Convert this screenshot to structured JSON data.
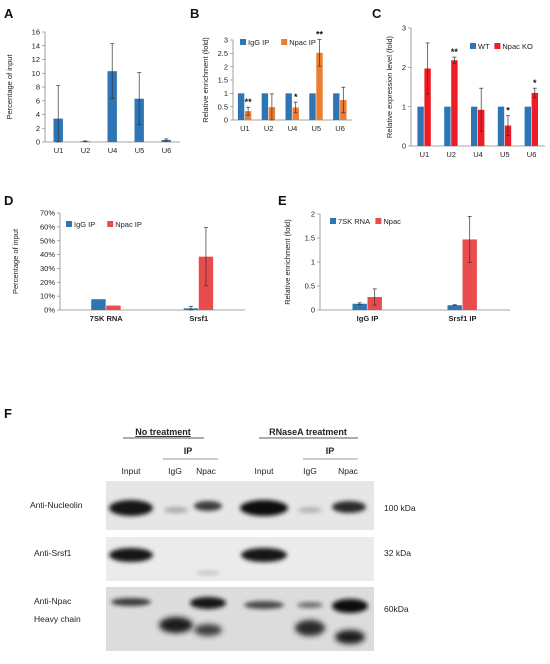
{
  "colors": {
    "blue": "#2e75b6",
    "orange": "#ed7d31",
    "red": "#e84c4c",
    "red_bright": "#ee1c25"
  },
  "chart_data": [
    {
      "panel": "A",
      "type": "bar",
      "ylabel": "Percentage of input",
      "categories": [
        "U1",
        "U2",
        "U4",
        "U5",
        "U6"
      ],
      "series": [
        {
          "values": [
            3.4,
            0.1,
            10.3,
            6.3,
            0.3
          ],
          "errors": [
            4.8,
            0.05,
            4.0,
            3.8,
            0.15
          ]
        }
      ],
      "ylim": [
        0,
        16
      ],
      "yticks": [
        0,
        2,
        4,
        6,
        8,
        10,
        12,
        14,
        16
      ]
    },
    {
      "panel": "B",
      "type": "bar",
      "ylabel": "Relative enrichment (fold)",
      "categories": [
        "U1",
        "U2",
        "U4",
        "U5",
        "U6"
      ],
      "series": [
        {
          "name": "IgG IP",
          "values": [
            1,
            1,
            1,
            1,
            1
          ],
          "errors": [
            0,
            0,
            0,
            0,
            0
          ]
        },
        {
          "name": "Npac IP",
          "values": [
            0.33,
            0.48,
            0.47,
            2.52,
            0.75
          ],
          "errors": [
            0.15,
            0.5,
            0.2,
            0.5,
            0.48
          ]
        }
      ],
      "significance": [
        "**",
        "",
        "*",
        "**",
        ""
      ],
      "ylim": [
        0,
        3
      ],
      "yticks": [
        0,
        0.5,
        1,
        1.5,
        2,
        2.5,
        3
      ]
    },
    {
      "panel": "C",
      "type": "bar",
      "ylabel": "Relative expression level (fold)",
      "categories": [
        "U1",
        "U2",
        "U4",
        "U5",
        "U6"
      ],
      "series": [
        {
          "name": "WT",
          "values": [
            1,
            1,
            1,
            1,
            1
          ],
          "errors": [
            0,
            0,
            0,
            0,
            0
          ]
        },
        {
          "name": "Npac KO",
          "values": [
            1.97,
            2.18,
            0.92,
            0.52,
            1.35
          ],
          "errors": [
            0.65,
            0.08,
            0.55,
            0.25,
            0.12
          ]
        }
      ],
      "significance": [
        "",
        "**",
        "",
        "*",
        "*"
      ],
      "ylim": [
        0,
        3
      ],
      "yticks": [
        0,
        1,
        2,
        3
      ]
    },
    {
      "panel": "D",
      "type": "bar",
      "ylabel": "Percentage of input",
      "categories": [
        "7SK RNA",
        "Srsf1"
      ],
      "series": [
        {
          "name": "IgG IP",
          "values": [
            7.8,
            1.2
          ],
          "errors": [
            0,
            1.5
          ]
        },
        {
          "name": "Npac IP",
          "values": [
            3.2,
            38.5
          ],
          "errors": [
            0,
            21
          ]
        }
      ],
      "ylim": [
        0,
        70
      ],
      "yticks": [
        "0%",
        "10%",
        "20%",
        "30%",
        "40%",
        "50%",
        "60%",
        "70%"
      ]
    },
    {
      "panel": "E",
      "type": "bar",
      "ylabel": "Relative enrichment (fold)",
      "categories": [
        "IgG IP",
        "Srsf1 IP"
      ],
      "series": [
        {
          "name": "7SK RNA",
          "values": [
            0.13,
            0.1
          ],
          "errors": [
            0.02,
            0.01
          ]
        },
        {
          "name": "Npac",
          "values": [
            0.27,
            1.47
          ],
          "errors": [
            0.17,
            0.48
          ]
        }
      ],
      "ylim": [
        0,
        2
      ],
      "yticks": [
        "0",
        "0.5",
        "1",
        "1.5",
        "2"
      ]
    }
  ],
  "western_blot": {
    "panel": "F",
    "headers": [
      "No treatment",
      "RNaseA treatment"
    ],
    "ip_label": "IP",
    "lanes": [
      "Input",
      "IgG",
      "Npac",
      "Input",
      "IgG",
      "Npac"
    ],
    "rows": [
      {
        "label": "Anti-Nucleolin",
        "size": "100 kDa"
      },
      {
        "label": "Anti-Srsf1",
        "size": "32 kDa"
      },
      {
        "label": "Anti-Npac",
        "size": "60kDa"
      },
      {
        "label": "Heavy chain",
        "size": ""
      }
    ]
  }
}
